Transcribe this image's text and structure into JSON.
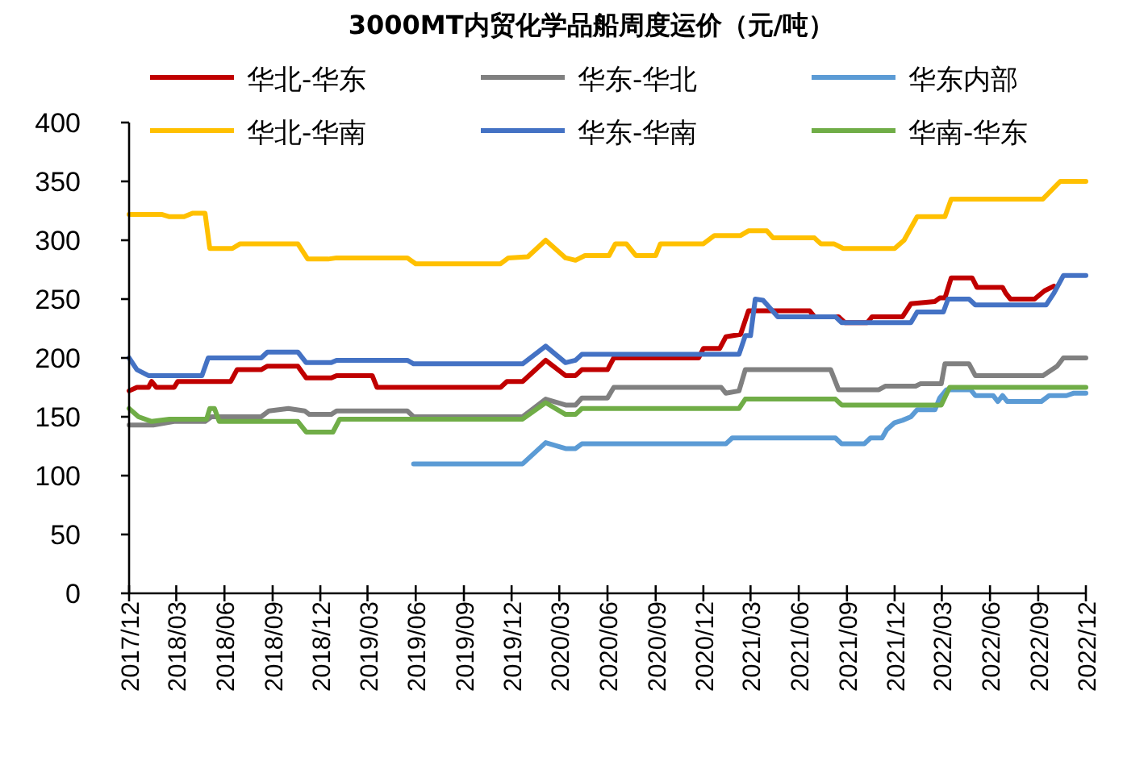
{
  "chart_data": {
    "type": "line",
    "title": "3000MT内贸化学品船周度运价（元/吨）",
    "xlim": [
      "2017-12",
      "2022-12"
    ],
    "xticks": [
      {
        "value": "2017-12",
        "label": "2017/12"
      },
      {
        "value": "2018-03",
        "label": "2018/03"
      },
      {
        "value": "2018-06",
        "label": "2018/06"
      },
      {
        "value": "2018-09",
        "label": "2018/09"
      },
      {
        "value": "2018-12",
        "label": "2018/12"
      },
      {
        "value": "2019-03",
        "label": "2019/03"
      },
      {
        "value": "2019-06",
        "label": "2019/06"
      },
      {
        "value": "2019-09",
        "label": "2019/09"
      },
      {
        "value": "2019-12",
        "label": "2019/12"
      },
      {
        "value": "2020-03",
        "label": "2020/03"
      },
      {
        "value": "2020-06",
        "label": "2020/06"
      },
      {
        "value": "2020-09",
        "label": "2020/09"
      },
      {
        "value": "2020-12",
        "label": "2020/12"
      },
      {
        "value": "2021-03",
        "label": "2021/03"
      },
      {
        "value": "2021-06",
        "label": "2021/06"
      },
      {
        "value": "2021-09",
        "label": "2021/09"
      },
      {
        "value": "2021-12",
        "label": "2021/12"
      },
      {
        "value": "2022-03",
        "label": "2022/03"
      },
      {
        "value": "2022-06",
        "label": "2022/06"
      },
      {
        "value": "2022-09",
        "label": "2022/09"
      },
      {
        "value": "2022-12",
        "label": "2022/12"
      }
    ],
    "ylim": [
      0,
      400
    ],
    "yticks": [
      0,
      50,
      100,
      150,
      200,
      250,
      300,
      350,
      400
    ],
    "grid": false,
    "legend": "top",
    "marker": "none",
    "line_style": "solid",
    "series": [
      {
        "name": "华北-华东",
        "color": "#c00000",
        "x": [
          "2017-12-01",
          "2017-12-16",
          "2018-01-07",
          "2018-01-13",
          "2018-01-22",
          "2018-02-25",
          "2018-03-04",
          "2018-06-13",
          "2018-06-25",
          "2018-08-10",
          "2018-08-22",
          "2018-10-19",
          "2018-11-04",
          "2018-12-22",
          "2019-01-01",
          "2019-03-10",
          "2019-03-19",
          "2019-11-10",
          "2019-11-22",
          "2019-12-22",
          "2020-02-04",
          "2020-03-13",
          "2020-04-01",
          "2020-04-13",
          "2020-06-01",
          "2020-06-13",
          "2020-11-22",
          "2020-12-01",
          "2021-01-01",
          "2021-01-13",
          "2021-02-10",
          "2021-02-25",
          "2021-06-22",
          "2021-07-01",
          "2021-08-16",
          "2021-08-28",
          "2021-10-10",
          "2021-10-19",
          "2021-12-16",
          "2022-01-01",
          "2022-02-16",
          "2022-02-25",
          "2022-03-07",
          "2022-03-19",
          "2022-04-28",
          "2022-05-07",
          "2022-06-25",
          "2022-07-01",
          "2022-07-10",
          "2022-08-25",
          "2022-09-13",
          "2022-10-01"
        ],
        "values": [
          172,
          175,
          175,
          180,
          175,
          175,
          180,
          180,
          190,
          190,
          193,
          193,
          183,
          183,
          185,
          185,
          175,
          175,
          180,
          180,
          198,
          185,
          185,
          190,
          190,
          200,
          200,
          208,
          208,
          218,
          220,
          240,
          240,
          235,
          235,
          230,
          230,
          235,
          235,
          246,
          248,
          251,
          251,
          268,
          268,
          260,
          260,
          255,
          250,
          250,
          257,
          261
        ]
      },
      {
        "name": "华东-华北",
        "color": "#808080",
        "x": [
          "2017-12-01",
          "2018-01-16",
          "2018-02-25",
          "2018-04-25",
          "2018-05-07",
          "2018-08-10",
          "2018-08-25",
          "2018-10-01",
          "2018-11-01",
          "2018-11-10",
          "2018-12-22",
          "2019-01-01",
          "2019-05-16",
          "2019-05-28",
          "2019-12-22",
          "2020-02-04",
          "2020-03-13",
          "2020-04-01",
          "2020-04-13",
          "2020-06-01",
          "2020-06-13",
          "2021-01-04",
          "2021-01-13",
          "2021-02-07",
          "2021-02-19",
          "2021-08-01",
          "2021-08-16",
          "2021-11-01",
          "2021-11-13",
          "2022-01-10",
          "2022-01-19",
          "2022-02-28",
          "2022-03-07",
          "2022-04-22",
          "2022-05-04",
          "2022-09-10",
          "2022-10-07",
          "2022-10-19",
          "2022-12-01"
        ],
        "values": [
          143,
          143,
          146,
          146,
          150,
          150,
          155,
          157,
          155,
          152,
          152,
          155,
          155,
          150,
          150,
          165,
          160,
          160,
          166,
          166,
          175,
          175,
          170,
          172,
          190,
          190,
          173,
          173,
          176,
          176,
          178,
          178,
          195,
          195,
          185,
          185,
          193,
          200,
          200
        ]
      },
      {
        "name": "华东内部",
        "color": "#5b9bd5",
        "x": [
          "2019-05-28",
          "2019-12-22",
          "2020-02-04",
          "2020-03-13",
          "2020-04-01",
          "2020-04-13",
          "2021-01-13",
          "2021-01-25",
          "2021-08-10",
          "2021-08-22",
          "2021-10-04",
          "2021-10-16",
          "2021-11-07",
          "2021-11-16",
          "2021-12-01",
          "2021-12-16",
          "2022-01-01",
          "2022-01-13",
          "2022-02-16",
          "2022-02-25",
          "2022-03-10",
          "2022-04-25",
          "2022-05-04",
          "2022-06-07",
          "2022-06-16",
          "2022-06-25",
          "2022-07-04",
          "2022-09-07",
          "2022-09-22",
          "2022-10-25",
          "2022-11-07",
          "2022-12-01"
        ],
        "values": [
          110,
          110,
          128,
          123,
          123,
          127,
          127,
          132,
          132,
          127,
          127,
          132,
          132,
          139,
          145,
          147,
          150,
          156,
          156,
          166,
          173,
          173,
          168,
          168,
          163,
          168,
          163,
          163,
          168,
          168,
          170,
          170
        ]
      },
      {
        "name": "华北-华南",
        "color": "#ffc000",
        "x": [
          "2017-12-01",
          "2018-02-01",
          "2018-02-16",
          "2018-03-16",
          "2018-04-01",
          "2018-04-25",
          "2018-05-04",
          "2018-06-16",
          "2018-07-01",
          "2018-10-19",
          "2018-11-07",
          "2018-12-16",
          "2019-01-01",
          "2019-05-16",
          "2019-06-01",
          "2019-11-10",
          "2019-11-25",
          "2020-01-01",
          "2020-02-04",
          "2020-03-13",
          "2020-04-01",
          "2020-04-19",
          "2020-06-04",
          "2020-06-16",
          "2020-07-07",
          "2020-07-25",
          "2020-09-01",
          "2020-09-10",
          "2020-12-01",
          "2020-12-22",
          "2021-02-10",
          "2021-02-25",
          "2021-04-01",
          "2021-04-13",
          "2021-07-01",
          "2021-07-13",
          "2021-08-07",
          "2021-08-25",
          "2021-12-01",
          "2021-12-19",
          "2022-01-13",
          "2022-03-07",
          "2022-03-19",
          "2022-09-10",
          "2022-10-13",
          "2022-12-01"
        ],
        "values": [
          322,
          322,
          320,
          320,
          323,
          323,
          293,
          293,
          297,
          297,
          284,
          284,
          285,
          285,
          280,
          280,
          285,
          286,
          300,
          285,
          283,
          287,
          287,
          297,
          297,
          287,
          287,
          297,
          297,
          304,
          304,
          308,
          308,
          302,
          302,
          297,
          297,
          293,
          293,
          300,
          320,
          320,
          335,
          335,
          350,
          350
        ]
      },
      {
        "name": "华东-华南",
        "color": "#4472c4",
        "x": [
          "2017-12-01",
          "2017-12-16",
          "2018-01-07",
          "2018-04-19",
          "2018-05-01",
          "2018-08-10",
          "2018-08-22",
          "2018-10-19",
          "2018-11-04",
          "2018-12-22",
          "2019-01-01",
          "2019-05-16",
          "2019-05-28",
          "2019-12-22",
          "2020-02-04",
          "2020-03-13",
          "2020-04-01",
          "2020-04-13",
          "2021-02-07",
          "2021-02-19",
          "2021-03-01",
          "2021-03-10",
          "2021-03-25",
          "2021-04-22",
          "2021-08-10",
          "2021-08-22",
          "2022-01-01",
          "2022-01-13",
          "2022-03-04",
          "2022-03-13",
          "2022-04-22",
          "2022-05-04",
          "2022-09-16",
          "2022-10-01",
          "2022-10-19",
          "2022-12-01"
        ],
        "values": [
          200,
          190,
          185,
          185,
          200,
          200,
          205,
          205,
          196,
          196,
          198,
          198,
          195,
          195,
          210,
          196,
          198,
          203,
          203,
          219,
          219,
          250,
          249,
          235,
          235,
          230,
          230,
          239,
          239,
          250,
          250,
          245,
          245,
          255,
          270,
          270
        ]
      },
      {
        "name": "华南-华东",
        "color": "#70ad47",
        "x": [
          "2017-12-01",
          "2017-12-19",
          "2018-01-13",
          "2018-02-16",
          "2018-04-28",
          "2018-05-04",
          "2018-05-13",
          "2018-05-22",
          "2018-10-19",
          "2018-11-04",
          "2018-12-25",
          "2019-01-07",
          "2019-12-22",
          "2020-02-04",
          "2020-03-13",
          "2020-04-01",
          "2020-04-13",
          "2021-02-07",
          "2021-02-19",
          "2021-08-10",
          "2021-08-22",
          "2022-02-28",
          "2022-03-16",
          "2022-12-01"
        ],
        "values": [
          157,
          150,
          146,
          148,
          148,
          157,
          157,
          146,
          146,
          137,
          137,
          148,
          148,
          162,
          152,
          152,
          157,
          157,
          165,
          165,
          160,
          160,
          175,
          175
        ]
      }
    ]
  }
}
